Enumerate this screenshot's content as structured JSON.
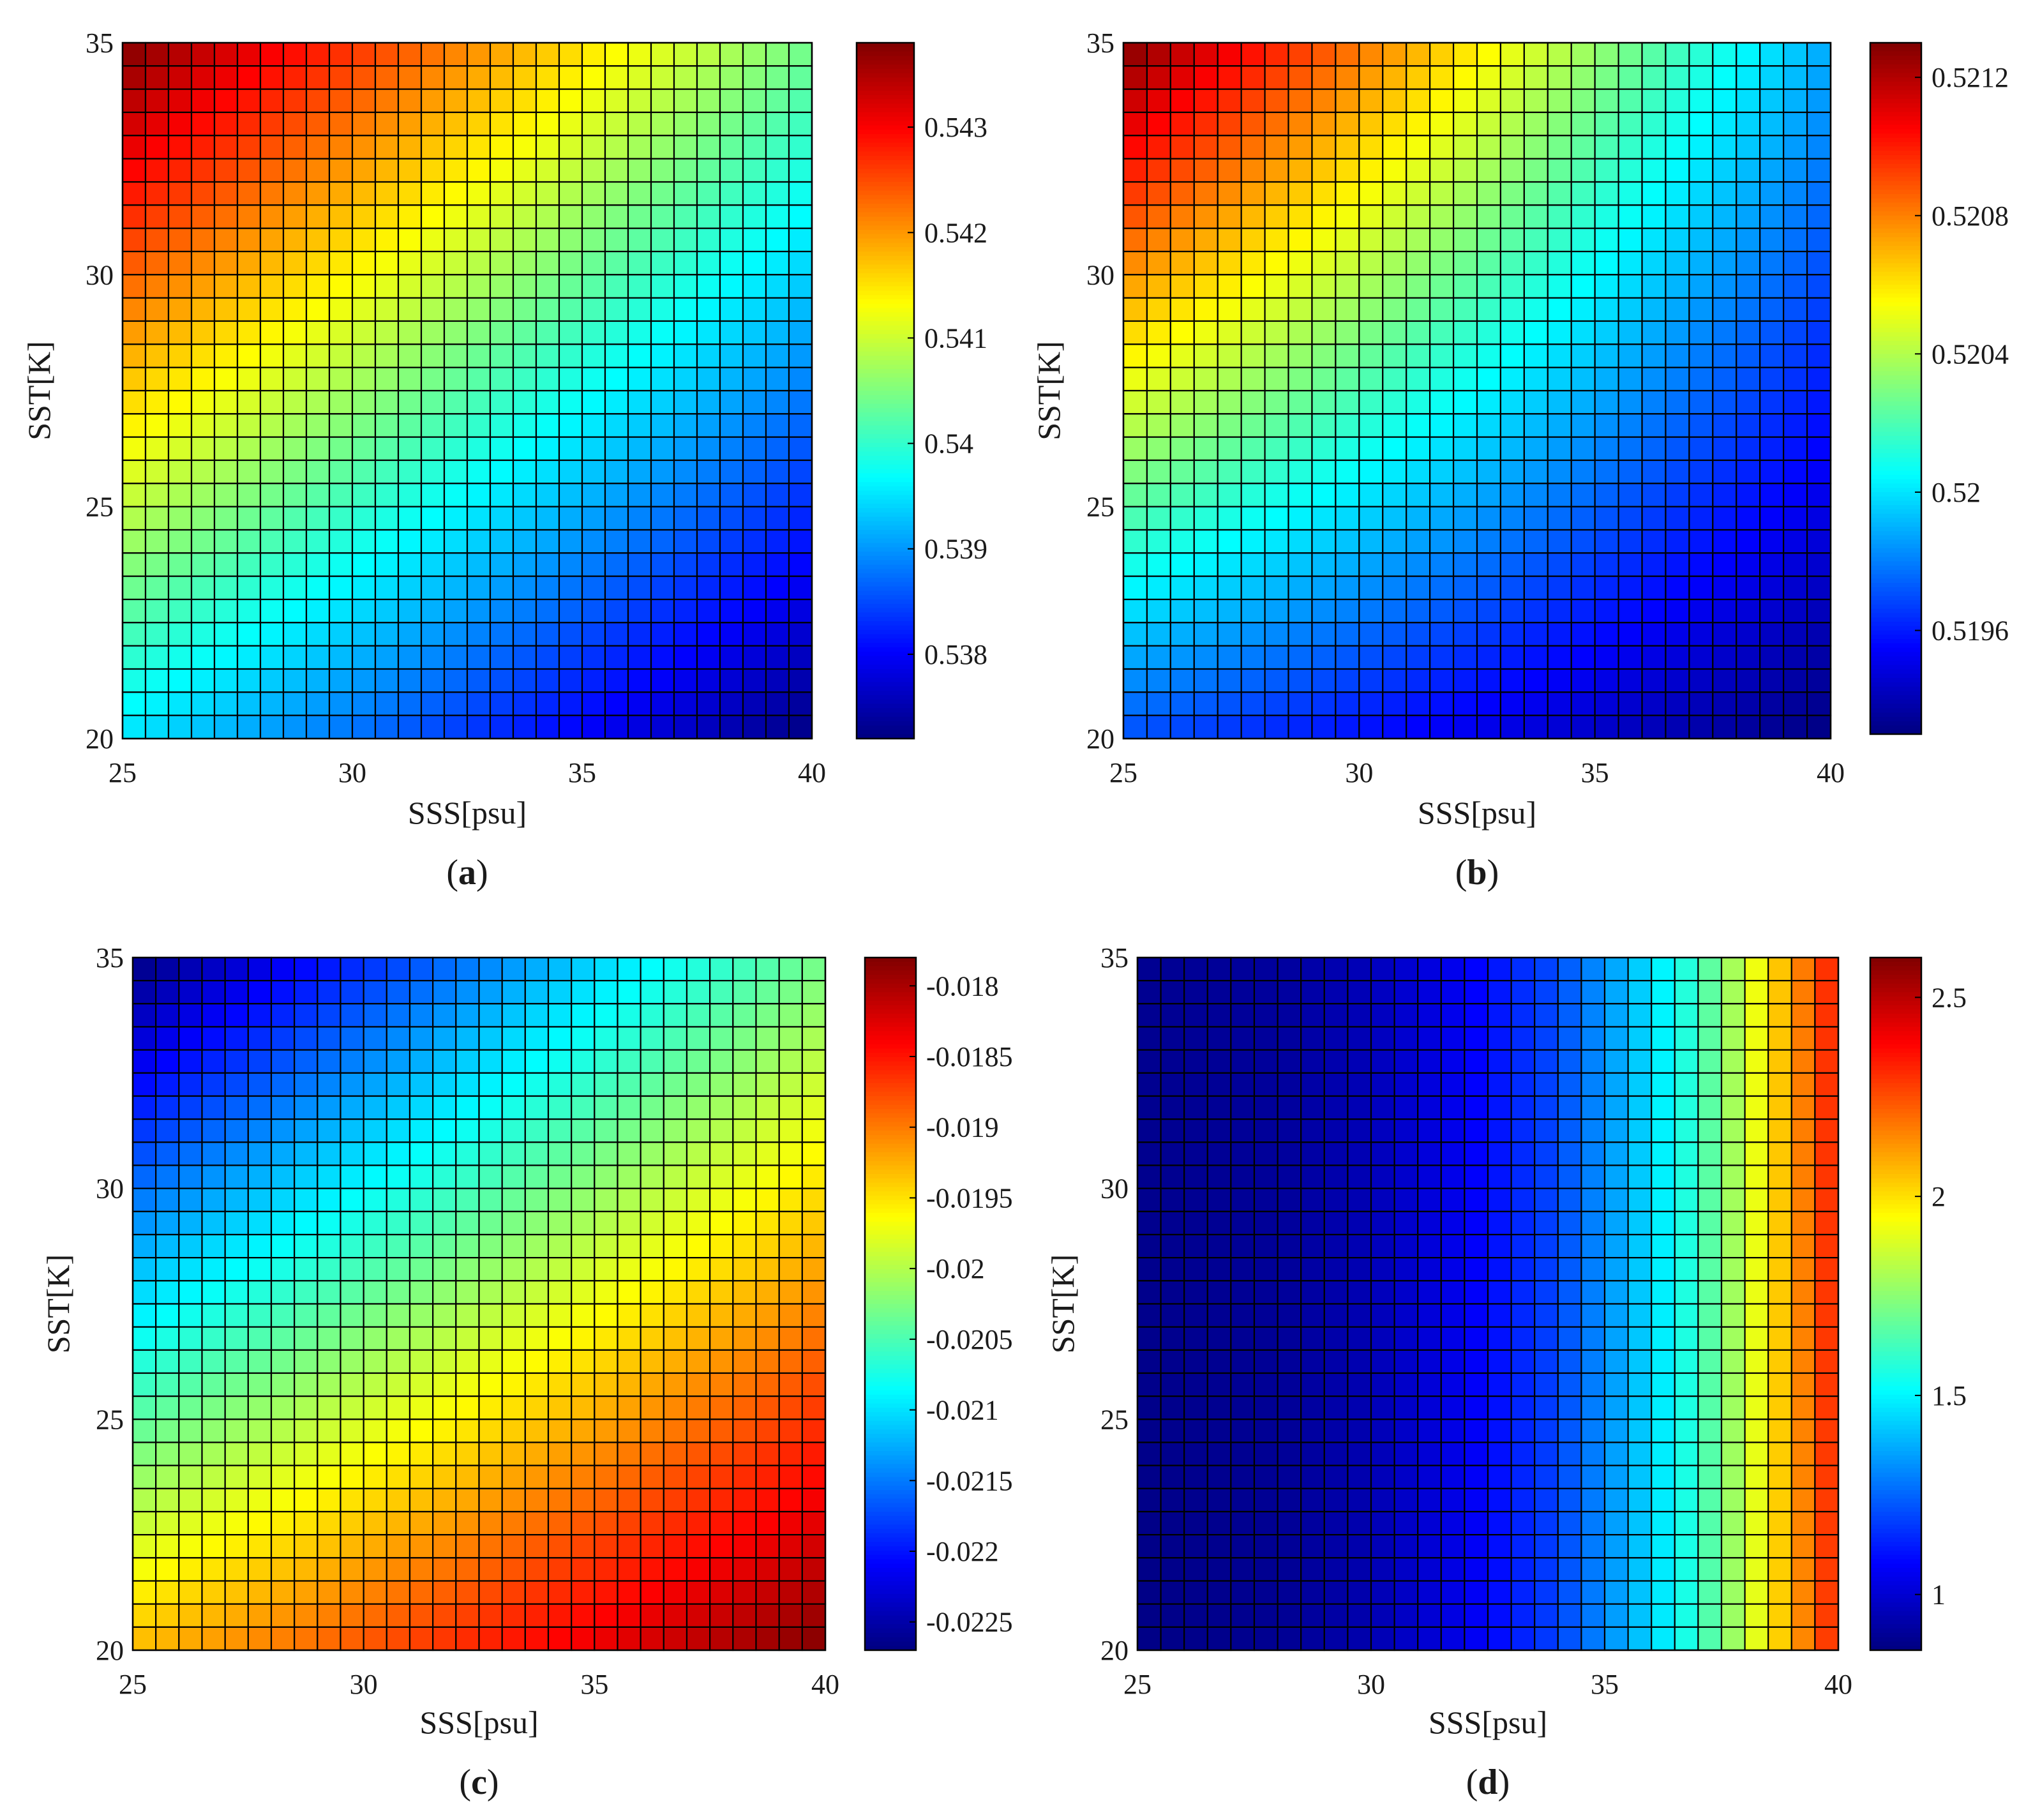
{
  "figure": {
    "panels": [
      "a",
      "b",
      "c",
      "d"
    ]
  },
  "chart_data": [
    {
      "type": "heatmap",
      "panel_label": "a",
      "xlabel": "SSS[psu]",
      "ylabel": "SST[K]",
      "xlim": [
        25,
        40
      ],
      "ylim": [
        20,
        35
      ],
      "x_ticks": [
        "25",
        "30",
        "35",
        "40"
      ],
      "y_ticks": [
        "20",
        "25",
        "30",
        "35"
      ],
      "grid": {
        "cols": 30,
        "rows": 30,
        "cell_borders": true
      },
      "colormap": "jet",
      "colorbar": {
        "min": 0.5372,
        "max": 0.5438,
        "ticks": [
          "0.538",
          "0.539",
          "0.54",
          "0.541",
          "0.542",
          "0.543"
        ],
        "tick_values": [
          0.538,
          0.539,
          0.54,
          0.541,
          0.542,
          0.543
        ]
      },
      "corner_values": {
        "x25_y35": 0.5438,
        "x40_y35": 0.5397,
        "x25_y20": 0.5395,
        "x40_y20": 0.5372
      },
      "saddle": 0.6
    },
    {
      "type": "heatmap",
      "panel_label": "b",
      "xlabel": "SSS[psu]",
      "ylabel": "SST[K]",
      "xlim": [
        25,
        40
      ],
      "ylim": [
        20,
        35
      ],
      "x_ticks": [
        "25",
        "30",
        "35",
        "40"
      ],
      "y_ticks": [
        "20",
        "25",
        "30",
        "35"
      ],
      "grid": {
        "cols": 30,
        "rows": 30,
        "cell_borders": true
      },
      "colormap": "jet",
      "colorbar": {
        "min": 0.5193,
        "max": 0.5213,
        "ticks": [
          "0.5196",
          "0.52",
          "0.5204",
          "0.5208",
          "0.5212"
        ],
        "tick_values": [
          0.5196,
          0.52,
          0.5204,
          0.5208,
          0.5212
        ]
      },
      "corner_values": {
        "x25_y35": 0.5213,
        "x40_y35": 0.5197,
        "x25_y20": 0.5197,
        "x40_y20": 0.5193
      },
      "saddle": 0.85
    },
    {
      "type": "heatmap",
      "panel_label": "c",
      "xlabel": "SSS[psu]",
      "ylabel": "SST[K]",
      "xlim": [
        25,
        40
      ],
      "ylim": [
        20,
        35
      ],
      "x_ticks": [
        "25",
        "30",
        "35",
        "40"
      ],
      "y_ticks": [
        "20",
        "25",
        "30",
        "35"
      ],
      "grid": {
        "cols": 30,
        "rows": 30,
        "cell_borders": true
      },
      "colormap": "jet",
      "colorbar": {
        "min": -0.0227,
        "max": -0.0178,
        "ticks": [
          "-0.018",
          "-0.0185",
          "-0.019",
          "-0.0195",
          "-0.02",
          "-0.0205",
          "-0.021",
          "-0.0215",
          "-0.022",
          "-0.0225"
        ],
        "tick_values": [
          -0.018,
          -0.0185,
          -0.019,
          -0.0195,
          -0.02,
          -0.0205,
          -0.021,
          -0.0215,
          -0.022,
          -0.0225
        ]
      },
      "corner_values": {
        "x25_y35": -0.0227,
        "x40_y35": -0.0197,
        "x25_y20": -0.0193,
        "x40_y20": -0.0178
      },
      "saddle": 0.6
    },
    {
      "type": "heatmap",
      "panel_label": "d",
      "xlabel": "SSS[psu]",
      "ylabel": "SST[K]",
      "xlim": [
        25,
        40
      ],
      "ylim": [
        20,
        35
      ],
      "x_ticks": [
        "25",
        "30",
        "35",
        "40"
      ],
      "y_ticks": [
        "20",
        "25",
        "30",
        "35"
      ],
      "grid": {
        "cols": 30,
        "rows": 30,
        "cell_borders": true
      },
      "colormap": "jet",
      "colorbar": {
        "min": 0.86,
        "max": 2.6,
        "ticks": [
          "1",
          "1.5",
          "2",
          "2.5"
        ],
        "tick_values": [
          1,
          1.5,
          2,
          2.5
        ]
      },
      "column_profile": {
        "x": [
          25,
          28,
          30,
          32,
          34,
          36,
          37,
          38,
          39,
          40
        ],
        "values": [
          0.88,
          0.9,
          0.95,
          1.05,
          1.2,
          1.45,
          1.6,
          1.85,
          2.1,
          2.35
        ]
      },
      "row_gradient": 0.02
    }
  ]
}
